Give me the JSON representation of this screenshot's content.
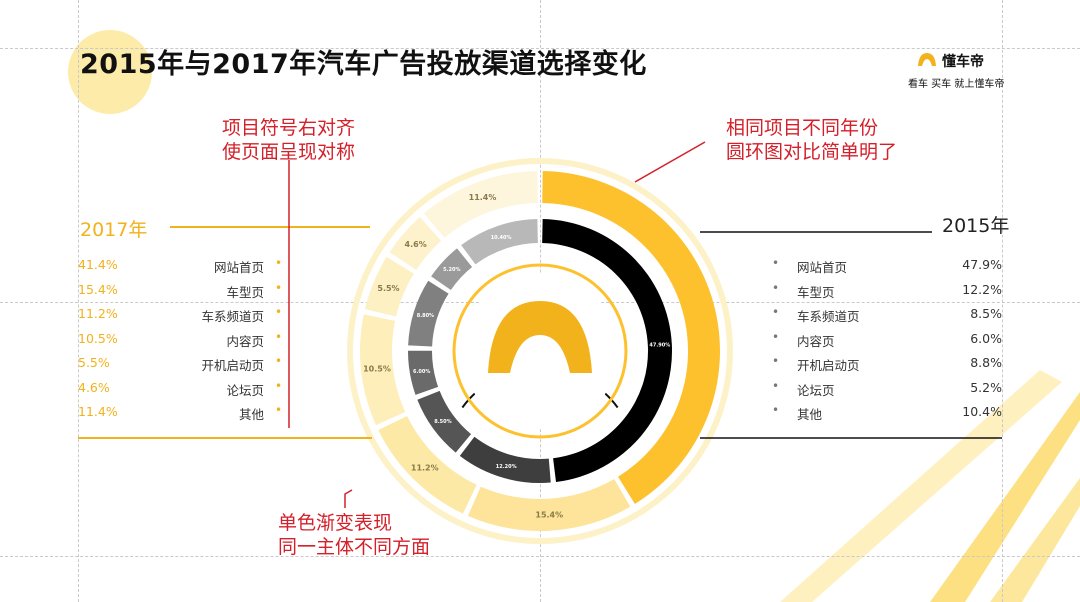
{
  "title": "2015年与2017年汽车广告投放渠道选择变化",
  "brand": {
    "name": "懂车帝",
    "slogan": "看车 买车 就上懂车帝"
  },
  "notes": {
    "right_symbols": [
      "项目符号右对齐",
      "使页面呈现对称"
    ],
    "ring_compare": [
      "相同项目不同年份",
      "圆环图对比简单明了"
    ],
    "mono_gradient": [
      "单色渐变表现",
      "同一主体不同方面"
    ]
  },
  "colors": {
    "accent_yellow": "#f2b21c",
    "note_red": "#d4202a",
    "ring_2015_highlight": "#000000",
    "ring_2017_highlight": "#fdc12e"
  },
  "chart_data": [
    {
      "type": "pie",
      "title": "2017年",
      "categories": [
        "网站首页",
        "车型页",
        "车系频道页",
        "内容页",
        "开机启动页",
        "论坛页",
        "其他"
      ],
      "values": [
        41.4,
        15.4,
        11.2,
        10.5,
        5.5,
        4.6,
        11.4
      ],
      "labels": [
        "41.4%",
        "15.4%",
        "11.2%",
        "10.5%",
        "5.5%",
        "4.6%",
        "11.4%"
      ],
      "colors": [
        "#fdc12e",
        "#fde49a",
        "#fde9a6",
        "#fdeeba",
        "#fdf0c3",
        "#fdf2cc",
        "#fdf6dd"
      ],
      "ring": "outer"
    },
    {
      "type": "pie",
      "title": "2015年",
      "categories": [
        "网站首页",
        "车型页",
        "车系频道页",
        "内容页",
        "开机启动页",
        "论坛页",
        "其他"
      ],
      "values": [
        47.9,
        12.2,
        8.5,
        6.0,
        8.8,
        5.2,
        10.4
      ],
      "labels": [
        "47.9%",
        "12.2%",
        "8.5%",
        "6.0%",
        "8.8%",
        "5.2%",
        "10.4%"
      ],
      "ring_labels": [
        "47.90%",
        "12.20%",
        "8.50%",
        "6.00%",
        "8.80%",
        "5.20%",
        "10.40%"
      ],
      "colors": [
        "#000000",
        "#3e3e3e",
        "#555555",
        "#6a6a6a",
        "#808080",
        "#9a9a9a",
        "#b8b8b8"
      ],
      "ring": "inner"
    }
  ]
}
